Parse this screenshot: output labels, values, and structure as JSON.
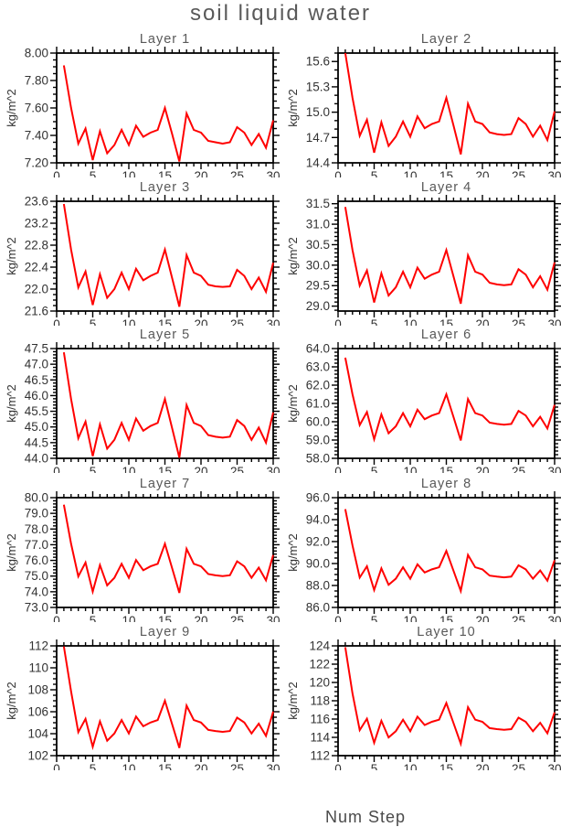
{
  "figure": {
    "title": "soil liquid water",
    "xlabel": "Num Step",
    "ylabel": "kg/m^2",
    "line_color": "#ff0000",
    "axis_color": "#000000",
    "tick_text_color": "#333333",
    "title_color": "#595959",
    "background": "#ffffff"
  },
  "chart_data": [
    {
      "type": "line",
      "title": "Layer 1",
      "ylabel": "kg/m^2",
      "xlim": [
        0,
        30
      ],
      "xticks": [
        0,
        5,
        10,
        15,
        20,
        25,
        30
      ],
      "x_minor_step": 1,
      "x_first": 1,
      "ylim": [
        7.2,
        8.0
      ],
      "yticks": [
        "7.20",
        "7.40",
        "7.60",
        "7.80",
        "8.00"
      ],
      "y_minor_step": 0.05,
      "values": [
        7.91,
        7.6,
        7.34,
        7.45,
        7.22,
        7.43,
        7.27,
        7.33,
        7.44,
        7.33,
        7.47,
        7.39,
        7.42,
        7.44,
        7.6,
        7.41,
        7.21,
        7.56,
        7.44,
        7.42,
        7.36,
        7.35,
        7.34,
        7.35,
        7.46,
        7.42,
        7.33,
        7.41,
        7.31,
        7.51
      ]
    },
    {
      "type": "line",
      "title": "Layer 2",
      "ylabel": "kg/m^2",
      "xlim": [
        0,
        30
      ],
      "xticks": [
        0,
        5,
        10,
        15,
        20,
        25,
        30
      ],
      "x_minor_step": 1,
      "x_first": 1,
      "ylim": [
        14.4,
        15.7
      ],
      "yticks": [
        "14.4",
        "14.7",
        "15.0",
        "15.3",
        "15.6"
      ],
      "y_minor_step": 0.1,
      "values": [
        15.7,
        15.17,
        14.72,
        14.91,
        14.52,
        14.88,
        14.6,
        14.71,
        14.89,
        14.71,
        14.95,
        14.81,
        14.86,
        14.89,
        15.17,
        14.84,
        14.5,
        15.1,
        14.89,
        14.86,
        14.76,
        14.74,
        14.73,
        14.74,
        14.93,
        14.86,
        14.71,
        14.84,
        14.67,
        15.01
      ]
    },
    {
      "type": "line",
      "title": "Layer 3",
      "ylabel": "kg/m^2",
      "xlim": [
        0,
        30
      ],
      "xticks": [
        0,
        5,
        10,
        15,
        20,
        25,
        30
      ],
      "x_minor_step": 1,
      "x_first": 1,
      "ylim": [
        21.6,
        23.6
      ],
      "yticks": [
        "21.6",
        "22.0",
        "22.4",
        "22.8",
        "23.2",
        "23.6"
      ],
      "y_minor_step": 0.1,
      "values": [
        23.55,
        22.72,
        22.03,
        22.32,
        21.71,
        22.27,
        21.84,
        22.0,
        22.3,
        22.0,
        22.37,
        22.16,
        22.24,
        22.3,
        22.72,
        22.2,
        21.68,
        22.62,
        22.3,
        22.24,
        22.08,
        22.05,
        22.04,
        22.05,
        22.35,
        22.24,
        22.0,
        22.21,
        21.95,
        22.48
      ]
    },
    {
      "type": "line",
      "title": "Layer 4",
      "ylabel": "kg/m^2",
      "xlim": [
        0,
        30
      ],
      "xticks": [
        0,
        5,
        10,
        15,
        20,
        25,
        30
      ],
      "x_minor_step": 1,
      "x_first": 1,
      "ylim": [
        28.88,
        31.56
      ],
      "yticks": [
        "29.0",
        "29.5",
        "30.0",
        "30.5",
        "31.0",
        "31.5"
      ],
      "y_minor_step": 0.1,
      "values": [
        31.42,
        30.37,
        29.5,
        29.87,
        29.09,
        29.8,
        29.26,
        29.46,
        29.84,
        29.46,
        29.94,
        29.67,
        29.77,
        29.84,
        30.37,
        29.72,
        29.06,
        30.24,
        29.84,
        29.77,
        29.57,
        29.53,
        29.51,
        29.53,
        29.9,
        29.77,
        29.46,
        29.73,
        29.4,
        30.07
      ]
    },
    {
      "type": "line",
      "title": "Layer 5",
      "ylabel": "kg/m^2",
      "xlim": [
        0,
        30
      ],
      "xticks": [
        0,
        5,
        10,
        15,
        20,
        25,
        30
      ],
      "x_minor_step": 1,
      "x_first": 1,
      "ylim": [
        44.0,
        47.5
      ],
      "yticks": [
        "44.0",
        "44.5",
        "45.0",
        "45.5",
        "46.0",
        "46.5",
        "47.0",
        "47.5"
      ],
      "y_minor_step": 0.1,
      "values": [
        47.38,
        45.89,
        44.64,
        45.17,
        44.07,
        45.08,
        44.31,
        44.59,
        45.13,
        44.59,
        45.27,
        44.88,
        45.03,
        45.13,
        45.89,
        44.96,
        44.02,
        45.7,
        45.13,
        45.03,
        44.74,
        44.69,
        44.66,
        44.69,
        45.22,
        45.03,
        44.59,
        44.98,
        44.5,
        45.46
      ]
    },
    {
      "type": "line",
      "title": "Layer 6",
      "ylabel": "kg/m^2",
      "xlim": [
        0,
        30
      ],
      "xticks": [
        0,
        5,
        10,
        15,
        20,
        25,
        30
      ],
      "x_minor_step": 1,
      "x_first": 1,
      "ylim": [
        58.0,
        64.0
      ],
      "yticks": [
        "58.0",
        "59.0",
        "60.0",
        "61.0",
        "62.0",
        "63.0",
        "64.0"
      ],
      "y_minor_step": 0.2,
      "values": [
        63.5,
        61.5,
        59.82,
        60.53,
        59.04,
        60.4,
        59.37,
        59.75,
        60.47,
        59.75,
        60.66,
        60.14,
        60.34,
        60.47,
        61.5,
        60.25,
        58.98,
        61.24,
        60.47,
        60.34,
        59.95,
        59.88,
        59.84,
        59.88,
        60.59,
        60.34,
        59.75,
        60.27,
        59.63,
        60.92
      ]
    },
    {
      "type": "line",
      "title": "Layer 7",
      "ylabel": "kg/m^2",
      "xlim": [
        0,
        30
      ],
      "xticks": [
        0,
        5,
        10,
        15,
        20,
        25,
        30
      ],
      "x_minor_step": 1,
      "x_first": 1,
      "ylim": [
        73.0,
        80.0
      ],
      "yticks": [
        "73.0",
        "74.0",
        "75.0",
        "76.0",
        "77.0",
        "78.0",
        "79.0",
        "80.0"
      ],
      "y_minor_step": 0.2,
      "values": [
        79.55,
        77.06,
        74.98,
        75.86,
        74.01,
        75.7,
        74.41,
        74.89,
        75.78,
        74.89,
        76.02,
        75.37,
        75.62,
        75.78,
        77.06,
        75.5,
        73.93,
        76.74,
        75.78,
        75.62,
        75.13,
        75.05,
        75.0,
        75.05,
        75.94,
        75.62,
        74.89,
        75.54,
        74.73,
        76.34
      ]
    },
    {
      "type": "line",
      "title": "Layer 8",
      "ylabel": "kg/m^2",
      "xlim": [
        0,
        30
      ],
      "xticks": [
        0,
        5,
        10,
        15,
        20,
        25,
        30
      ],
      "x_minor_step": 1,
      "x_first": 1,
      "ylim": [
        86.0,
        96.0
      ],
      "yticks": [
        "86.0",
        "88.0",
        "90.0",
        "92.0",
        "94.0",
        "96.0"
      ],
      "y_minor_step": 0.5,
      "values": [
        94.95,
        91.65,
        88.72,
        89.75,
        87.59,
        89.56,
        88.06,
        88.62,
        89.66,
        88.62,
        89.93,
        89.18,
        89.47,
        89.66,
        91.15,
        89.33,
        87.5,
        90.78,
        89.66,
        89.47,
        88.9,
        88.81,
        88.74,
        88.81,
        89.84,
        89.47,
        88.62,
        89.37,
        88.44,
        90.31
      ]
    },
    {
      "type": "line",
      "title": "Layer 9",
      "ylabel": "kg/m^2",
      "xlim": [
        0,
        30
      ],
      "xticks": [
        0,
        5,
        10,
        15,
        20,
        25,
        30
      ],
      "x_minor_step": 1,
      "x_first": 1,
      "ylim": [
        102,
        112
      ],
      "yticks": [
        "102",
        "104",
        "106",
        "108",
        "110",
        "112"
      ],
      "y_minor_step": 0.5,
      "values": [
        111.95,
        107.85,
        104.14,
        105.35,
        102.81,
        105.12,
        103.36,
        104.02,
        105.24,
        104.02,
        105.56,
        104.68,
        105.02,
        105.24,
        107.0,
        104.86,
        102.7,
        106.56,
        105.24,
        105.02,
        104.35,
        104.24,
        104.17,
        104.24,
        105.46,
        105.02,
        104.02,
        104.91,
        103.8,
        106.01
      ]
    },
    {
      "type": "line",
      "title": "Layer 10",
      "ylabel": "kg/m^2",
      "xlim": [
        0,
        30
      ],
      "xticks": [
        0,
        5,
        10,
        15,
        20,
        25,
        30
      ],
      "x_minor_step": 1,
      "x_first": 1,
      "ylim": [
        112,
        124
      ],
      "yticks": [
        "112",
        "114",
        "116",
        "118",
        "120",
        "122",
        "124"
      ],
      "y_minor_step": 0.5,
      "values": [
        123.85,
        118.8,
        114.79,
        116.04,
        113.41,
        115.81,
        113.99,
        114.67,
        115.93,
        114.67,
        116.26,
        115.35,
        115.7,
        115.93,
        117.75,
        115.54,
        113.3,
        117.3,
        115.93,
        115.7,
        115.01,
        114.9,
        114.82,
        114.9,
        116.15,
        115.7,
        114.67,
        115.59,
        114.44,
        116.73
      ]
    }
  ]
}
